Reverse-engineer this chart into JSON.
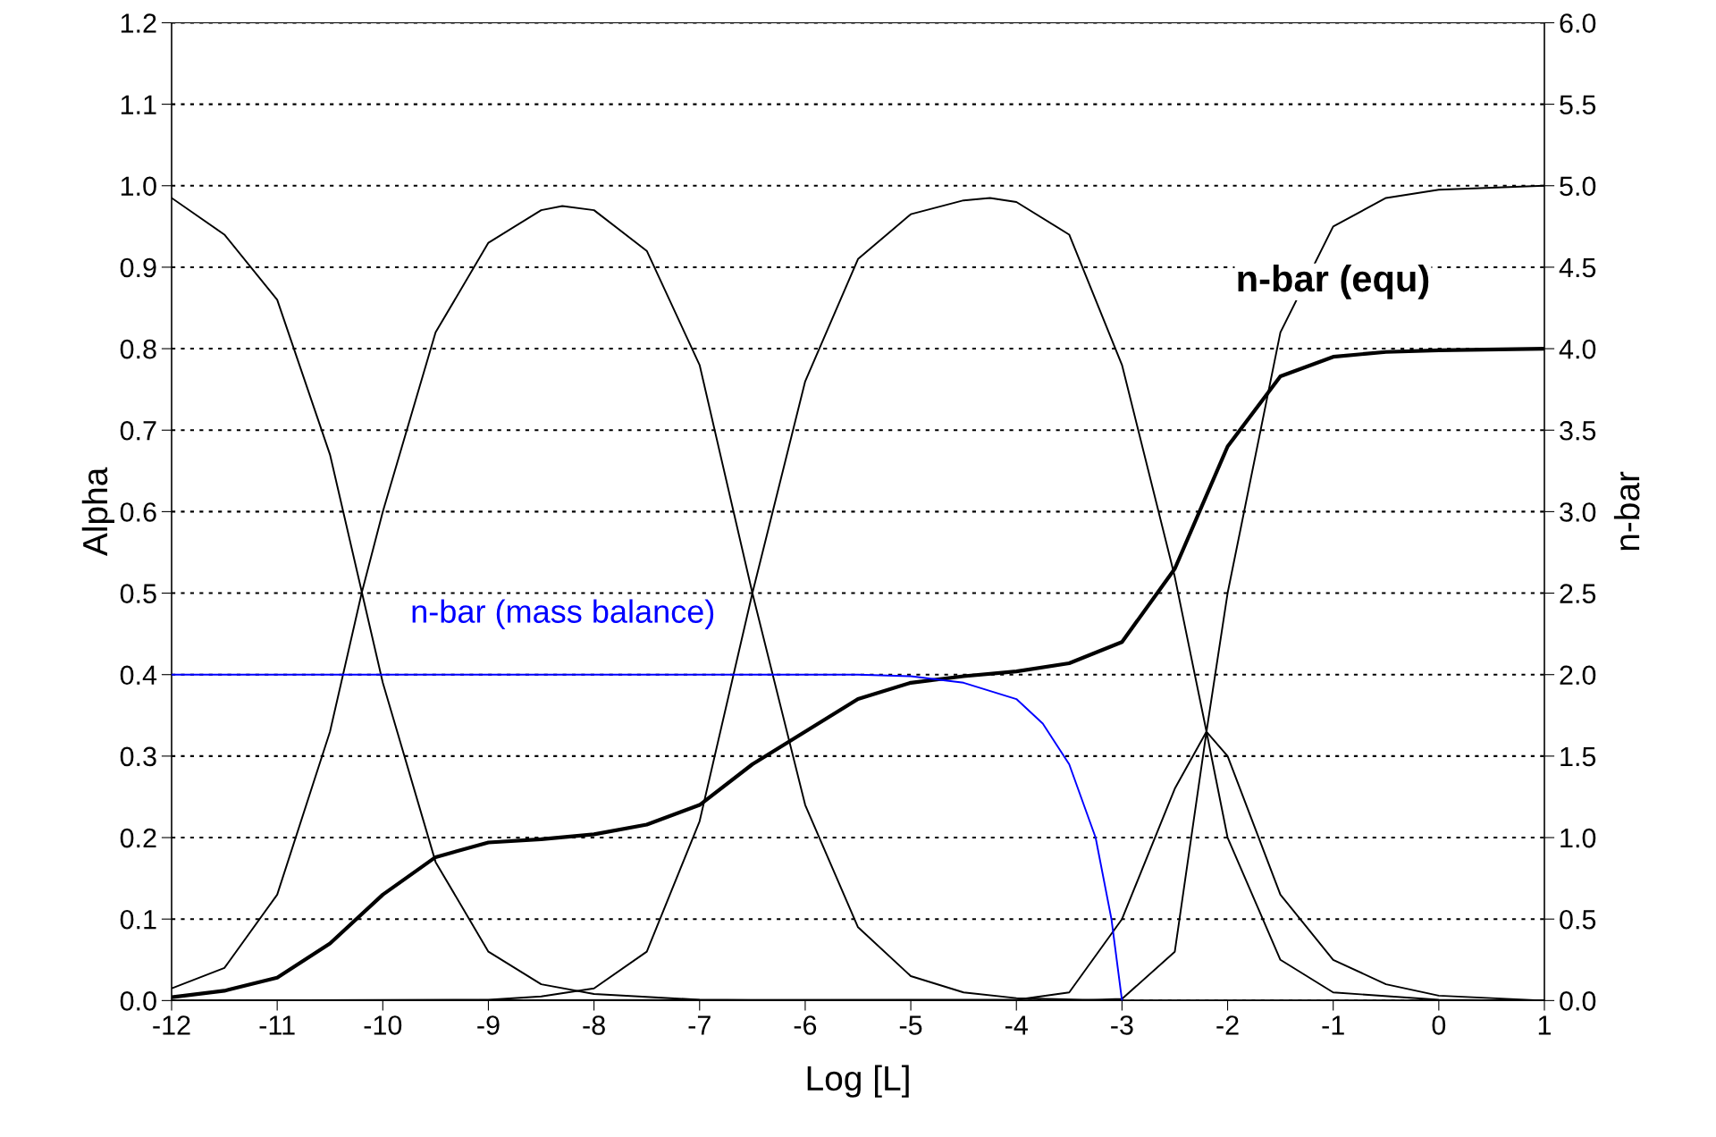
{
  "chart_data": {
    "type": "line",
    "xlabel": "Log [L]",
    "ylabel": "Alpha",
    "y2label": "n-bar",
    "xlim": [
      -12,
      1
    ],
    "xticks": [
      -12,
      -11,
      -10,
      -9,
      -8,
      -7,
      -6,
      -5,
      -4,
      -3,
      -2,
      -1,
      0,
      1
    ],
    "ylim": [
      0,
      1.2
    ],
    "yticks": [
      {
        "value": 0,
        "label": "0.0"
      },
      0.1,
      0.2,
      0.3,
      0.4,
      0.5,
      0.6,
      0.7,
      0.8,
      0.9,
      {
        "value": 1,
        "label": "1.0"
      },
      1.1,
      1.2
    ],
    "y2lim": [
      0,
      6
    ],
    "y2ticks": [
      {
        "value": 0,
        "label": "0.0"
      },
      0.5,
      {
        "value": 1,
        "label": "1.0"
      },
      1.5,
      {
        "value": 2,
        "label": "2.0"
      },
      2.5,
      {
        "value": 3,
        "label": "3.0"
      },
      3.5,
      {
        "value": 4,
        "label": "4.0"
      },
      4.5,
      {
        "value": 5,
        "label": "5.0"
      },
      5.5,
      {
        "value": 6,
        "label": "6.0"
      }
    ],
    "grid": "y",
    "legend": false,
    "marker": "none",
    "line_style": "solid",
    "series": [
      {
        "color": "#000000",
        "x": [
          -12,
          -11.5,
          -11,
          -10.5,
          -10,
          -9.5,
          -9,
          -8.5,
          -8,
          -7,
          -6,
          -4,
          1
        ],
        "values": [
          0.985,
          0.94,
          0.86,
          0.67,
          0.39,
          0.17,
          0.06,
          0.02,
          0.008,
          0.001,
          0,
          0,
          0
        ]
      },
      {
        "color": "#000000",
        "x": [
          -12,
          -11.5,
          -11,
          -10.5,
          -10.2,
          -10,
          -9.5,
          -9,
          -8.5,
          -8.3,
          -8,
          -7.5,
          -7,
          -6.5,
          -6,
          -5.5,
          -5,
          -4.5,
          -4,
          -3,
          1
        ],
        "values": [
          0.015,
          0.04,
          0.13,
          0.33,
          0.5,
          0.6,
          0.82,
          0.93,
          0.97,
          0.975,
          0.97,
          0.92,
          0.78,
          0.5,
          0.24,
          0.09,
          0.03,
          0.01,
          0.003,
          0,
          0
        ]
      },
      {
        "color": "#000000",
        "x": [
          -12,
          -9,
          -8.5,
          -8,
          -7.5,
          -7,
          -6.5,
          -6,
          -5.5,
          -5,
          -4.5,
          -4.25,
          -4,
          -3.5,
          -3,
          -2.5,
          -2.2,
          -2,
          -1.5,
          -1,
          0,
          1
        ],
        "values": [
          0,
          0.001,
          0.005,
          0.015,
          0.06,
          0.22,
          0.5,
          0.76,
          0.91,
          0.965,
          0.982,
          0.985,
          0.98,
          0.94,
          0.78,
          0.52,
          0.33,
          0.2,
          0.05,
          0.01,
          0.001,
          0
        ]
      },
      {
        "color": "#000000",
        "x": [
          -12,
          -4,
          -3.5,
          -3,
          -2.5,
          -2.2,
          -2,
          -1.5,
          -1,
          -0.5,
          0,
          1
        ],
        "values": [
          0,
          0.001,
          0.01,
          0.1,
          0.26,
          0.33,
          0.3,
          0.13,
          0.05,
          0.02,
          0.006,
          0
        ]
      },
      {
        "color": "#000000",
        "x": [
          -12,
          -3.5,
          -3,
          -2.5,
          -2.2,
          -2,
          -1.5,
          -1,
          -0.5,
          0,
          1
        ],
        "values": [
          0,
          0,
          0.002,
          0.06,
          0.33,
          0.5,
          0.82,
          0.95,
          0.985,
          0.995,
          1.0
        ]
      },
      {
        "name": "n-bar (equ)",
        "color": "#000000",
        "axis": "y2",
        "x": [
          -12,
          -11.5,
          -11,
          -10.5,
          -10,
          -9.5,
          -9,
          -8.5,
          -8,
          -7.5,
          -7,
          -6.5,
          -6,
          -5.5,
          -5,
          -4.5,
          -4,
          -3.5,
          -3,
          -2.5,
          -2,
          -1.5,
          -1,
          -0.5,
          0,
          1
        ],
        "values": [
          0.02,
          0.06,
          0.14,
          0.35,
          0.65,
          0.88,
          0.97,
          0.99,
          1.02,
          1.08,
          1.2,
          1.45,
          1.65,
          1.85,
          1.95,
          1.99,
          2.02,
          2.07,
          2.2,
          2.65,
          3.4,
          3.83,
          3.95,
          3.98,
          3.99,
          4.0
        ]
      },
      {
        "name": "n-bar (mass balance)",
        "color": "#0000ff",
        "axis": "y2",
        "x": [
          -12,
          -5.5,
          -5,
          -4.5,
          -4,
          -3.75,
          -3.5,
          -3.25,
          -3.1,
          -3
        ],
        "values": [
          2.0,
          2.0,
          1.99,
          1.95,
          1.85,
          1.7,
          1.45,
          1.0,
          0.5,
          0
        ]
      }
    ]
  }
}
